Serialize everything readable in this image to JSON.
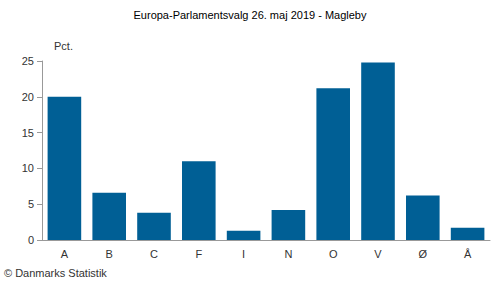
{
  "chart_data": {
    "type": "bar",
    "title": "Europa-Parlamentsvalg 26. maj 2019 - Magleby",
    "y_label": "Pct.",
    "source": "© Danmarks Statistik",
    "categories": [
      "A",
      "B",
      "C",
      "F",
      "I",
      "N",
      "O",
      "V",
      "Ø",
      "Å"
    ],
    "values": [
      20.0,
      6.6,
      3.8,
      11.0,
      1.3,
      4.2,
      21.2,
      24.8,
      6.2,
      1.7
    ],
    "color": "#005f95",
    "ylim": [
      0,
      25
    ],
    "yticks": [
      0,
      5,
      10,
      15,
      20,
      25
    ],
    "grid": false
  }
}
